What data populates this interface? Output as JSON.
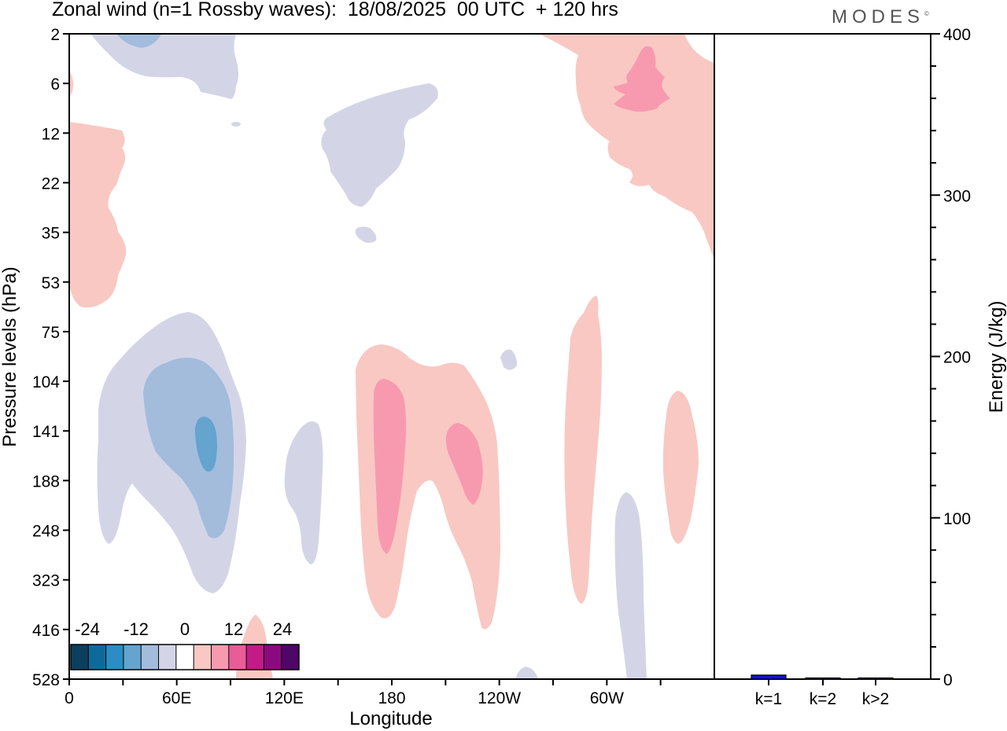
{
  "title": "Zonal wind (n=1 Rossby waves):  18/08/2025  00 UTC  + 120 hrs",
  "logo": {
    "text": "MODES",
    "mark": "©"
  },
  "chart_data": [
    {
      "type": "heatmap",
      "title": "Zonal wind (n=1 Rossby waves):  18/08/2025  00 UTC  + 120 hrs",
      "xlabel": "Longitude",
      "ylabel": "Pressure levels (hPa)",
      "x_tick_labels": [
        "0",
        "60E",
        "120E",
        "180",
        "120W",
        "60W"
      ],
      "x_tick_values_deg": [
        0,
        60,
        120,
        180,
        240,
        300
      ],
      "xlim_deg": [
        0,
        360
      ],
      "y_tick_labels": [
        "2",
        "6",
        "12",
        "22",
        "35",
        "53",
        "75",
        "104",
        "141",
        "188",
        "248",
        "323",
        "416",
        "528"
      ],
      "colorbar": {
        "tick_labels": [
          "-24",
          "-12",
          "0",
          "12",
          "24"
        ],
        "bins": [
          -30,
          -24,
          -18,
          -12,
          -6,
          0,
          6,
          12,
          18,
          24,
          30
        ],
        "colors": [
          "#0c3f5e",
          "#0f6a9c",
          "#2c8cc4",
          "#64a4cf",
          "#a3bcdc",
          "#d3d5e7",
          "#ffffff",
          "#f9c8c3",
          "#f89aaf",
          "#ea5b99",
          "#c21a86",
          "#8b0a7d",
          "#4e0667"
        ]
      },
      "regions": [
        {
          "lon": 24,
          "level": 2,
          "level_min": 2,
          "level_max": 6,
          "value": -3,
          "color": "#d3d5e7"
        },
        {
          "lon": 35,
          "level": 2,
          "level_min": 2,
          "level_max": 2.5,
          "value": -9,
          "color": "#a3bcdc"
        },
        {
          "lon": 160,
          "level": 12,
          "level_min": 6,
          "level_max": 25,
          "value": -3,
          "color": "#d3d5e7"
        },
        {
          "lon": 164,
          "level": 35,
          "level_min": 33,
          "level_max": 38,
          "value": -3,
          "color": "#d3d5e7"
        },
        {
          "lon": 12,
          "level": 30,
          "level_min": 10,
          "level_max": 62,
          "value": 3,
          "color": "#f9c8c3"
        },
        {
          "lon": 315,
          "level": 12,
          "level_min": 2,
          "level_max": 50,
          "value": 3,
          "color": "#f9c8c3"
        },
        {
          "lon": 307,
          "level": 6,
          "level_min": 3,
          "level_max": 9,
          "value": 9,
          "color": "#f89aaf"
        },
        {
          "lon": 50,
          "level": 188,
          "level_min": 75,
          "level_max": 330,
          "value": -3,
          "color": "#d3d5e7"
        },
        {
          "lon": 60,
          "level": 150,
          "level_min": 104,
          "level_max": 260,
          "value": -9,
          "color": "#a3bcdc"
        },
        {
          "lon": 77,
          "level": 150,
          "level_min": 125,
          "level_max": 188,
          "value": -15,
          "color": "#64a4cf"
        },
        {
          "lon": 131,
          "level": 200,
          "level_min": 135,
          "level_max": 310,
          "value": -3,
          "color": "#d3d5e7"
        },
        {
          "lon": 195,
          "level": 200,
          "level_min": 90,
          "level_max": 440,
          "value": 3,
          "color": "#f9c8c3"
        },
        {
          "lon": 172,
          "level": 160,
          "level_min": 110,
          "level_max": 290,
          "value": 9,
          "color": "#f89aaf"
        },
        {
          "lon": 211,
          "level": 150,
          "level_min": 115,
          "level_max": 230,
          "value": 9,
          "color": "#f89aaf"
        },
        {
          "lon": 247,
          "level": 94,
          "level_min": 88,
          "level_max": 100,
          "value": -3,
          "color": "#d3d5e7"
        },
        {
          "lon": 282,
          "level": 160,
          "level_min": 65,
          "level_max": 370,
          "value": 3,
          "color": "#f9c8c3"
        },
        {
          "lon": 318,
          "level": 330,
          "level_min": 200,
          "level_max": 528,
          "value": -3,
          "color": "#d3d5e7"
        },
        {
          "lon": 345,
          "level": 170,
          "level_min": 115,
          "level_max": 250,
          "value": 3,
          "color": "#f9c8c3"
        },
        {
          "lon": 102,
          "level": 470,
          "level_min": 390,
          "level_max": 528,
          "value": 3,
          "color": "#f9c8c3"
        },
        {
          "lon": 257,
          "level": 528,
          "level_min": 500,
          "level_max": 528,
          "value": -3,
          "color": "#d3d5e7"
        }
      ]
    },
    {
      "type": "bar",
      "title": "",
      "xlabel": "",
      "ylabel": "Energy (J/kg)",
      "categories": [
        "k=1",
        "k=2",
        "k>2"
      ],
      "values": [
        2.5,
        0.4,
        0.6
      ],
      "ylim": [
        0,
        400
      ],
      "y_ticks": [
        0,
        100,
        200,
        300,
        400
      ],
      "bar_colors": [
        "#1414d6",
        "#1414d6",
        "#1414d6"
      ]
    }
  ]
}
